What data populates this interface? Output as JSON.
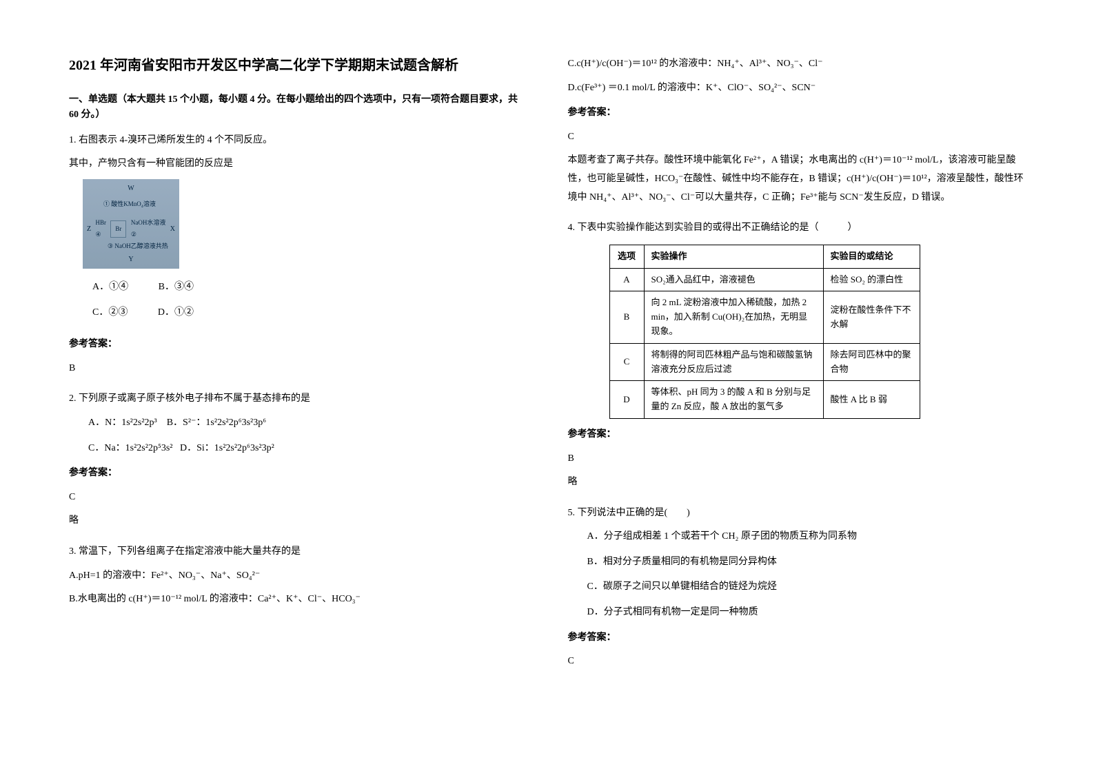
{
  "title": "2021 年河南省安阳市开发区中学高二化学下学期期末试题含解析",
  "section1": "一、单选题（本大题共 15 个小题，每小题 4 分。在每小题给出的四个选项中，只有一项符合题目要求，共 60 分。）",
  "ans_label": "参考答案：",
  "q1": {
    "stem1": "1. 右图表示 4-溴环己烯所发生的 4 个不同反应。",
    "stem2": "其中，产物只含有一种官能团的反应是",
    "diagram": {
      "top": "W",
      "r1": "① 酸性KMnO₄溶液",
      "left": "Z",
      "hbr": "HBr",
      "circ4": "④",
      "mid": "Br",
      "right": "X",
      "naoh": "NaOH水溶液",
      "circ2": "②",
      "r3": "③ NaOH乙醇溶液共热",
      "bot": "Y"
    },
    "opts": {
      "a": "A．①④",
      "b": "B．③④",
      "c": "C．②③",
      "d": "D．①②"
    },
    "ans": "B"
  },
  "q2": {
    "stem": "2. 下列原子或离子原子核外电子排布不属于基态排布的是",
    "a": "A．N：1s²2s²2p³",
    "b": "B．S²⁻：1s²2s²2p⁶3s²3p⁶",
    "c": "C．Na：1s²2s²2p⁵3s²",
    "d": "D．Si：1s²2s²2p⁶3s²3p²",
    "ans": "C",
    "expl": "略"
  },
  "q3": {
    "stem": "3. 常温下，下列各组离子在指定溶液中能大量共存的是",
    "a": "A.pH=1 的溶液中：Fe²⁺、NO₃⁻、Na⁺、SO₄²⁻",
    "b": "B.水电离出的 c(H⁺)＝10⁻¹² mol/L 的溶液中：Ca²⁺、K⁺、Cl⁻、HCO₃⁻",
    "c": "C.c(H⁺)/c(OH⁻)＝10¹² 的水溶液中：NH₄⁺、Al³⁺、NO₃⁻、Cl⁻",
    "d": "D.c(Fe³⁺) ＝0.1 mol/L 的溶液中：K⁺、ClO⁻、SO₄²⁻、SCN⁻",
    "ans": "C",
    "expl": "本题考查了离子共存。酸性环境中能氧化 Fe²⁺，A 错误；水电离出的 c(H⁺)＝10⁻¹² mol/L，该溶液可能呈酸性，也可能呈碱性，HCO₃⁻在酸性、碱性中均不能存在，B 错误；c(H⁺)/c(OH⁻)＝10¹²，溶液呈酸性，酸性环境中 NH₄⁺、Al³⁺、NO₃⁻、Cl⁻可以大量共存，C 正确；Fe³⁺能与 SCN⁻发生反应，D 错误。"
  },
  "q4": {
    "stem": "4. 下表中实验操作能达到实验目的或得出不正确结论的是（　　　）",
    "head": {
      "c1": "选项",
      "c2": "实验操作",
      "c3": "实验目的或结论"
    },
    "rows": [
      {
        "c1": "A",
        "c2": "SO₂通入品红中，溶液褪色",
        "c3": "检验 SO₂ 的漂白性"
      },
      {
        "c1": "B",
        "c2": "向 2 mL 淀粉溶液中加入稀硫酸，加热 2 min，加入新制 Cu(OH)₂在加热，无明显现象。",
        "c3": "淀粉在酸性条件下不水解"
      },
      {
        "c1": "C",
        "c2": "将制得的阿司匹林粗产品与饱和碳酸氢钠溶液充分反应后过滤",
        "c3": "除去阿司匹林中的聚合物"
      },
      {
        "c1": "D",
        "c2": "等体积、pH 同为 3 的酸 A 和 B 分别与足量的 Zn 反应，酸 A 放出的氢气多",
        "c3": "酸性 A 比 B 弱"
      }
    ],
    "ans": "B",
    "expl": "略"
  },
  "q5": {
    "stem": "5. 下列说法中正确的是(　　)",
    "a": "A．分子组成相差 1 个或若干个 CH₂ 原子团的物质互称为同系物",
    "b": "B．相对分子质量相同的有机物是同分异构体",
    "c": "C．碳原子之间只以单键相结合的链烃为烷烃",
    "d": "D．分子式相同有机物一定是同一种物质",
    "ans": "C"
  }
}
